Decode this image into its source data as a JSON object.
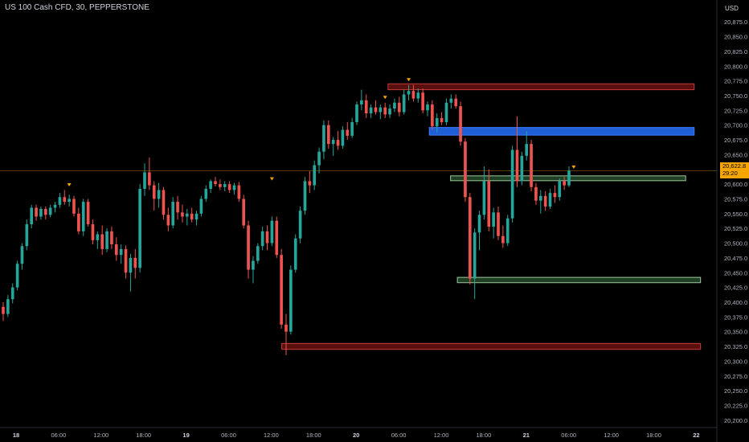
{
  "header": {
    "title": "US 100 Cash CFD, 30, PEPPERSTONE",
    "currency": "USD"
  },
  "price_badge": {
    "price": "20,622.8",
    "countdown": "29:20"
  },
  "colors": {
    "background": "#000000",
    "bull": "#26a69a",
    "bear": "#ef5350",
    "zone_red_fill": "#5a0f0f",
    "zone_red_stroke": "#c43b3b",
    "zone_blue_fill": "#1f5fd6",
    "zone_blue_stroke": "#3d7bff",
    "zone_green_fill": "#1f3f24",
    "zone_green_stroke": "#9ec79f",
    "price_line": "#f7a600",
    "axis_text": "#b2b5be"
  },
  "chart_data": {
    "type": "candlestick",
    "title": "US 100 Cash CFD, 30, PEPPERSTONE",
    "ylabel": "USD",
    "ylim": [
      20187.5,
      20887.5
    ],
    "y_ticks": [
      "20,875.0",
      "20,850.0",
      "20,825.0",
      "20,800.0",
      "20,775.0",
      "20,750.0",
      "20,725.0",
      "20,700.0",
      "20,675.0",
      "20,650.0",
      "20,625.0",
      "20,600.0",
      "20,575.0",
      "20,550.0",
      "20,525.0",
      "20,500.0",
      "20,475.0",
      "20,450.0",
      "20,425.0",
      "20,400.0",
      "20,375.0",
      "20,350.0",
      "20,325.0",
      "20,300.0",
      "20,275.0",
      "20,250.0",
      "20,225.0",
      "20,200.0"
    ],
    "x_ticks": [
      {
        "label": "18",
        "major": true
      },
      {
        "label": "06:00",
        "major": false
      },
      {
        "label": "12:00",
        "major": false
      },
      {
        "label": "18:00",
        "major": false
      },
      {
        "label": "19",
        "major": true
      },
      {
        "label": "06:00",
        "major": false
      },
      {
        "label": "12:00",
        "major": false
      },
      {
        "label": "18:00",
        "major": false
      },
      {
        "label": "20",
        "major": true
      },
      {
        "label": "06:00",
        "major": false
      },
      {
        "label": "12:00",
        "major": false
      },
      {
        "label": "18:00",
        "major": false
      },
      {
        "label": "21",
        "major": true
      },
      {
        "label": "06:00",
        "major": false
      },
      {
        "label": "12:00",
        "major": false
      },
      {
        "label": "18:00",
        "major": false
      },
      {
        "label": "22",
        "major": true
      }
    ],
    "last_price": 20622.8,
    "zones": [
      {
        "kind": "red",
        "top": 20770,
        "bottom": 20760,
        "start_tick": 8.75,
        "end_tick": 15.95
      },
      {
        "kind": "blue",
        "top": 20696,
        "bottom": 20683,
        "start_tick": 9.72,
        "end_tick": 15.95
      },
      {
        "kind": "green",
        "top": 20614,
        "bottom": 20606,
        "start_tick": 10.22,
        "end_tick": 15.75
      },
      {
        "kind": "green",
        "top": 20442,
        "bottom": 20433,
        "start_tick": 10.38,
        "end_tick": 16.1
      },
      {
        "kind": "red",
        "top": 20330,
        "bottom": 20320,
        "start_tick": 6.25,
        "end_tick": 16.1
      }
    ],
    "candles": [
      {
        "o": 20392,
        "h": 20400,
        "l": 20368,
        "c": 20380
      },
      {
        "o": 20380,
        "h": 20412,
        "l": 20375,
        "c": 20405
      },
      {
        "o": 20405,
        "h": 20432,
        "l": 20398,
        "c": 20425
      },
      {
        "o": 20425,
        "h": 20470,
        "l": 20420,
        "c": 20465
      },
      {
        "o": 20465,
        "h": 20500,
        "l": 20455,
        "c": 20495
      },
      {
        "o": 20495,
        "h": 20540,
        "l": 20488,
        "c": 20532
      },
      {
        "o": 20532,
        "h": 20565,
        "l": 20525,
        "c": 20560
      },
      {
        "o": 20560,
        "h": 20565,
        "l": 20538,
        "c": 20545
      },
      {
        "o": 20545,
        "h": 20562,
        "l": 20540,
        "c": 20558
      },
      {
        "o": 20558,
        "h": 20562,
        "l": 20540,
        "c": 20548
      },
      {
        "o": 20548,
        "h": 20565,
        "l": 20544,
        "c": 20560
      },
      {
        "o": 20560,
        "h": 20570,
        "l": 20552,
        "c": 20565
      },
      {
        "o": 20565,
        "h": 20585,
        "l": 20560,
        "c": 20578
      },
      {
        "o": 20578,
        "h": 20590,
        "l": 20565,
        "c": 20570
      },
      {
        "o": 20570,
        "h": 20582,
        "l": 20562,
        "c": 20575
      },
      {
        "o": 20575,
        "h": 20580,
        "l": 20545,
        "c": 20550
      },
      {
        "o": 20550,
        "h": 20560,
        "l": 20515,
        "c": 20520
      },
      {
        "o": 20520,
        "h": 20575,
        "l": 20512,
        "c": 20570
      },
      {
        "o": 20570,
        "h": 20575,
        "l": 20528,
        "c": 20532
      },
      {
        "o": 20532,
        "h": 20540,
        "l": 20498,
        "c": 20505
      },
      {
        "o": 20505,
        "h": 20520,
        "l": 20490,
        "c": 20515
      },
      {
        "o": 20515,
        "h": 20530,
        "l": 20480,
        "c": 20490
      },
      {
        "o": 20490,
        "h": 20525,
        "l": 20485,
        "c": 20520
      },
      {
        "o": 20520,
        "h": 20528,
        "l": 20490,
        "c": 20498
      },
      {
        "o": 20498,
        "h": 20510,
        "l": 20470,
        "c": 20480
      },
      {
        "o": 20480,
        "h": 20498,
        "l": 20465,
        "c": 20490
      },
      {
        "o": 20490,
        "h": 20496,
        "l": 20440,
        "c": 20450
      },
      {
        "o": 20450,
        "h": 20482,
        "l": 20418,
        "c": 20475
      },
      {
        "o": 20475,
        "h": 20490,
        "l": 20440,
        "c": 20458
      },
      {
        "o": 20458,
        "h": 20600,
        "l": 20450,
        "c": 20592
      },
      {
        "o": 20592,
        "h": 20635,
        "l": 20580,
        "c": 20620
      },
      {
        "o": 20620,
        "h": 20645,
        "l": 20590,
        "c": 20598
      },
      {
        "o": 20598,
        "h": 20605,
        "l": 20555,
        "c": 20575
      },
      {
        "o": 20575,
        "h": 20602,
        "l": 20560,
        "c": 20590
      },
      {
        "o": 20590,
        "h": 20595,
        "l": 20540,
        "c": 20548
      },
      {
        "o": 20548,
        "h": 20560,
        "l": 20520,
        "c": 20530
      },
      {
        "o": 20530,
        "h": 20578,
        "l": 20525,
        "c": 20570
      },
      {
        "o": 20570,
        "h": 20580,
        "l": 20540,
        "c": 20552
      },
      {
        "o": 20552,
        "h": 20565,
        "l": 20535,
        "c": 20545
      },
      {
        "o": 20545,
        "h": 20558,
        "l": 20530,
        "c": 20550
      },
      {
        "o": 20550,
        "h": 20560,
        "l": 20535,
        "c": 20540
      },
      {
        "o": 20540,
        "h": 20555,
        "l": 20530,
        "c": 20550
      },
      {
        "o": 20550,
        "h": 20580,
        "l": 20545,
        "c": 20575
      },
      {
        "o": 20575,
        "h": 20598,
        "l": 20570,
        "c": 20592
      },
      {
        "o": 20592,
        "h": 20608,
        "l": 20585,
        "c": 20605
      },
      {
        "o": 20605,
        "h": 20612,
        "l": 20596,
        "c": 20600
      },
      {
        "o": 20600,
        "h": 20608,
        "l": 20590,
        "c": 20595
      },
      {
        "o": 20595,
        "h": 20605,
        "l": 20588,
        "c": 20600
      },
      {
        "o": 20600,
        "h": 20605,
        "l": 20585,
        "c": 20590
      },
      {
        "o": 20590,
        "h": 20602,
        "l": 20582,
        "c": 20598
      },
      {
        "o": 20598,
        "h": 20604,
        "l": 20570,
        "c": 20575
      },
      {
        "o": 20575,
        "h": 20582,
        "l": 20525,
        "c": 20530
      },
      {
        "o": 20530,
        "h": 20538,
        "l": 20440,
        "c": 20455
      },
      {
        "o": 20455,
        "h": 20478,
        "l": 20432,
        "c": 20470
      },
      {
        "o": 20470,
        "h": 20500,
        "l": 20465,
        "c": 20495
      },
      {
        "o": 20495,
        "h": 20528,
        "l": 20488,
        "c": 20520
      },
      {
        "o": 20520,
        "h": 20530,
        "l": 20488,
        "c": 20500
      },
      {
        "o": 20500,
        "h": 20545,
        "l": 20495,
        "c": 20538
      },
      {
        "o": 20538,
        "h": 20545,
        "l": 20475,
        "c": 20480
      },
      {
        "o": 20480,
        "h": 20490,
        "l": 20355,
        "c": 20362
      },
      {
        "o": 20362,
        "h": 20380,
        "l": 20310,
        "c": 20350
      },
      {
        "o": 20350,
        "h": 20462,
        "l": 20345,
        "c": 20455
      },
      {
        "o": 20455,
        "h": 20515,
        "l": 20450,
        "c": 20508
      },
      {
        "o": 20508,
        "h": 20562,
        "l": 20500,
        "c": 20555
      },
      {
        "o": 20555,
        "h": 20612,
        "l": 20548,
        "c": 20605
      },
      {
        "o": 20605,
        "h": 20622,
        "l": 20585,
        "c": 20598
      },
      {
        "o": 20598,
        "h": 20640,
        "l": 20590,
        "c": 20632
      },
      {
        "o": 20632,
        "h": 20662,
        "l": 20618,
        "c": 20655
      },
      {
        "o": 20655,
        "h": 20708,
        "l": 20642,
        "c": 20700
      },
      {
        "o": 20700,
        "h": 20708,
        "l": 20660,
        "c": 20668
      },
      {
        "o": 20668,
        "h": 20680,
        "l": 20648,
        "c": 20675
      },
      {
        "o": 20675,
        "h": 20690,
        "l": 20658,
        "c": 20665
      },
      {
        "o": 20665,
        "h": 20698,
        "l": 20660,
        "c": 20692
      },
      {
        "o": 20692,
        "h": 20705,
        "l": 20675,
        "c": 20682
      },
      {
        "o": 20682,
        "h": 20712,
        "l": 20678,
        "c": 20705
      },
      {
        "o": 20705,
        "h": 20740,
        "l": 20700,
        "c": 20735
      },
      {
        "o": 20735,
        "h": 20760,
        "l": 20725,
        "c": 20742
      },
      {
        "o": 20742,
        "h": 20752,
        "l": 20712,
        "c": 20720
      },
      {
        "o": 20720,
        "h": 20735,
        "l": 20712,
        "c": 20730
      },
      {
        "o": 20730,
        "h": 20742,
        "l": 20718,
        "c": 20722
      },
      {
        "o": 20722,
        "h": 20735,
        "l": 20710,
        "c": 20730
      },
      {
        "o": 20730,
        "h": 20738,
        "l": 20712,
        "c": 20718
      },
      {
        "o": 20718,
        "h": 20735,
        "l": 20712,
        "c": 20728
      },
      {
        "o": 20728,
        "h": 20745,
        "l": 20722,
        "c": 20738
      },
      {
        "o": 20738,
        "h": 20748,
        "l": 20715,
        "c": 20722
      },
      {
        "o": 20722,
        "h": 20760,
        "l": 20718,
        "c": 20752
      },
      {
        "o": 20752,
        "h": 20768,
        "l": 20742,
        "c": 20758
      },
      {
        "o": 20758,
        "h": 20768,
        "l": 20740,
        "c": 20745
      },
      {
        "o": 20745,
        "h": 20762,
        "l": 20738,
        "c": 20755
      },
      {
        "o": 20755,
        "h": 20762,
        "l": 20720,
        "c": 20725
      },
      {
        "o": 20725,
        "h": 20740,
        "l": 20715,
        "c": 20735
      },
      {
        "o": 20735,
        "h": 20742,
        "l": 20692,
        "c": 20698
      },
      {
        "o": 20698,
        "h": 20720,
        "l": 20688,
        "c": 20712
      },
      {
        "o": 20712,
        "h": 20722,
        "l": 20700,
        "c": 20705
      },
      {
        "o": 20705,
        "h": 20745,
        "l": 20700,
        "c": 20738
      },
      {
        "o": 20738,
        "h": 20752,
        "l": 20728,
        "c": 20745
      },
      {
        "o": 20745,
        "h": 20752,
        "l": 20728,
        "c": 20732
      },
      {
        "o": 20732,
        "h": 20740,
        "l": 20665,
        "c": 20672
      },
      {
        "o": 20672,
        "h": 20678,
        "l": 20570,
        "c": 20578
      },
      {
        "o": 20578,
        "h": 20585,
        "l": 20430,
        "c": 20440
      },
      {
        "o": 20440,
        "h": 20525,
        "l": 20405,
        "c": 20518
      },
      {
        "o": 20518,
        "h": 20555,
        "l": 20488,
        "c": 20548
      },
      {
        "o": 20548,
        "h": 20630,
        "l": 20540,
        "c": 20605
      },
      {
        "o": 20605,
        "h": 20625,
        "l": 20520,
        "c": 20528
      },
      {
        "o": 20528,
        "h": 20560,
        "l": 20508,
        "c": 20552
      },
      {
        "o": 20552,
        "h": 20562,
        "l": 20505,
        "c": 20512
      },
      {
        "o": 20512,
        "h": 20530,
        "l": 20492,
        "c": 20500
      },
      {
        "o": 20500,
        "h": 20548,
        "l": 20495,
        "c": 20542
      },
      {
        "o": 20542,
        "h": 20665,
        "l": 20535,
        "c": 20658
      },
      {
        "o": 20658,
        "h": 20715,
        "l": 20595,
        "c": 20605
      },
      {
        "o": 20605,
        "h": 20655,
        "l": 20598,
        "c": 20648
      },
      {
        "o": 20648,
        "h": 20690,
        "l": 20640,
        "c": 20668
      },
      {
        "o": 20668,
        "h": 20675,
        "l": 20588,
        "c": 20595
      },
      {
        "o": 20595,
        "h": 20602,
        "l": 20565,
        "c": 20572
      },
      {
        "o": 20572,
        "h": 20590,
        "l": 20550,
        "c": 20580
      },
      {
        "o": 20580,
        "h": 20588,
        "l": 20555,
        "c": 20562
      },
      {
        "o": 20562,
        "h": 20592,
        "l": 20558,
        "c": 20585
      },
      {
        "o": 20585,
        "h": 20598,
        "l": 20568,
        "c": 20578
      },
      {
        "o": 20578,
        "h": 20610,
        "l": 20572,
        "c": 20605
      },
      {
        "o": 20605,
        "h": 20612,
        "l": 20590,
        "c": 20598
      },
      {
        "o": 20598,
        "h": 20630,
        "l": 20595,
        "c": 20622.8
      }
    ],
    "markers": [
      {
        "candle": 14,
        "price": 20592
      },
      {
        "candle": 57,
        "price": 20602
      },
      {
        "candle": 81,
        "price": 20740
      },
      {
        "candle": 86,
        "price": 20770
      },
      {
        "candle": 121,
        "price": 20622
      }
    ]
  }
}
